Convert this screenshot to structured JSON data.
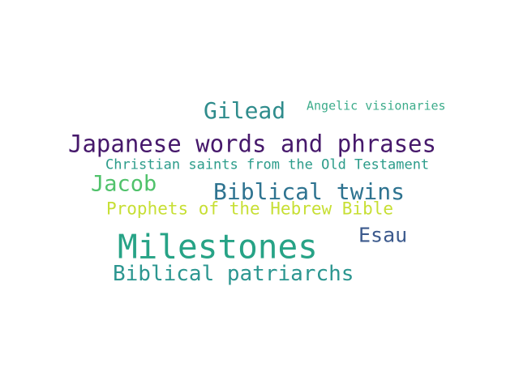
{
  "word_cloud": {
    "words": [
      {
        "text": "Gilead",
        "color": "#2f8c8c"
      },
      {
        "text": "Angelic visionaries",
        "color": "#3dac8b"
      },
      {
        "text": "Japanese words and phrases",
        "color": "#46186b"
      },
      {
        "text": "Christian saints from the Old Testament",
        "color": "#2c9c8a"
      },
      {
        "text": "Jacob",
        "color": "#50c26b"
      },
      {
        "text": "Biblical twins",
        "color": "#2e7390"
      },
      {
        "text": "Prophets of the Hebrew Bible",
        "color": "#c7df34"
      },
      {
        "text": "Esau",
        "color": "#3c5a8d"
      },
      {
        "text": "Milestones",
        "color": "#27a386"
      },
      {
        "text": "Biblical patriarchs",
        "color": "#2c9690"
      }
    ]
  }
}
